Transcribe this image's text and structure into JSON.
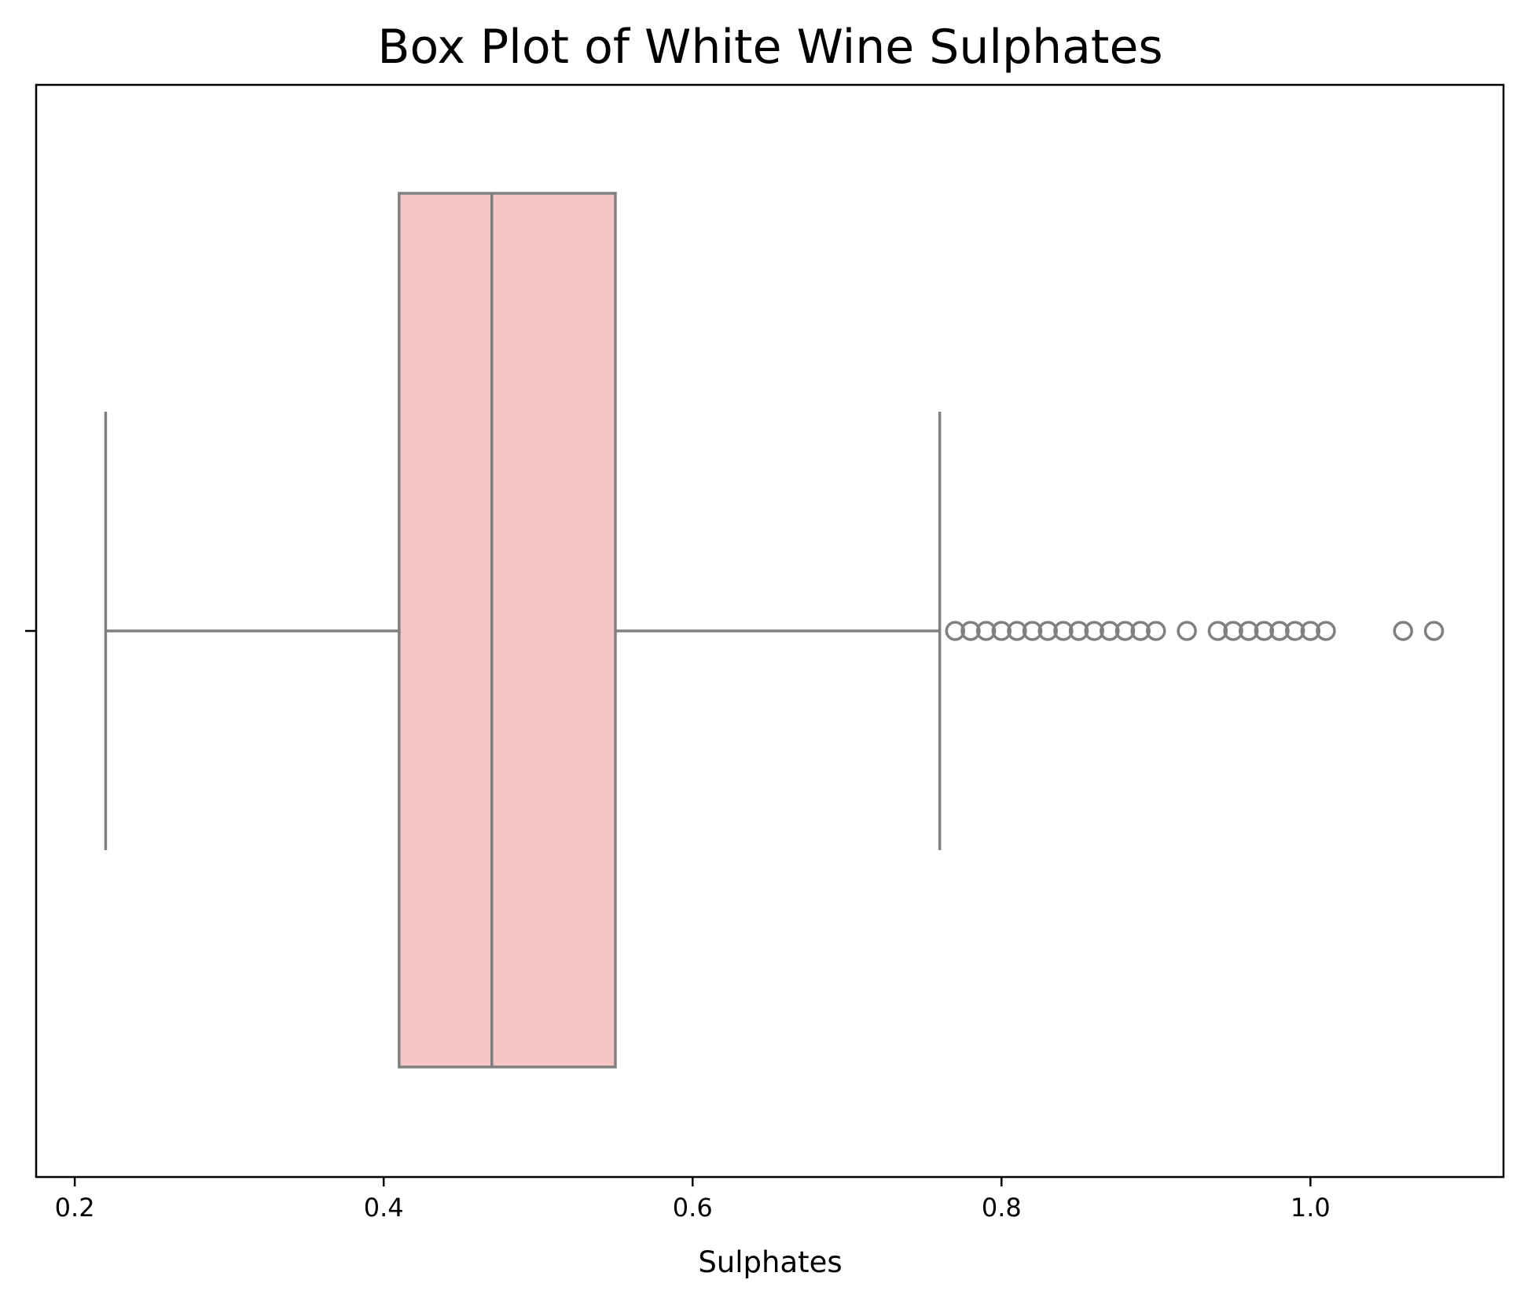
{
  "chart_data": {
    "type": "box",
    "orientation": "horizontal",
    "title": "Box Plot of White Wine Sulphates",
    "xlabel": "Sulphates",
    "ylabel": "",
    "xlim": [
      0.175,
      1.125
    ],
    "xticks": [
      0.2,
      0.4,
      0.6,
      0.8,
      1.0
    ],
    "xtick_labels": [
      "0.2",
      "0.4",
      "0.6",
      "0.8",
      "1.0"
    ],
    "box": {
      "whisker_low": 0.22,
      "q1": 0.41,
      "median": 0.47,
      "q3": 0.55,
      "whisker_high": 0.76
    },
    "outliers": [
      0.77,
      0.78,
      0.79,
      0.8,
      0.81,
      0.82,
      0.83,
      0.84,
      0.85,
      0.86,
      0.87,
      0.88,
      0.89,
      0.9,
      0.92,
      0.94,
      0.95,
      0.96,
      0.97,
      0.98,
      0.99,
      1.0,
      1.01,
      1.06,
      1.08
    ],
    "colors": {
      "box_fill": "#f5c6c4",
      "line": "#808080",
      "frame": "#000000"
    },
    "grid": false,
    "legend": "none"
  }
}
